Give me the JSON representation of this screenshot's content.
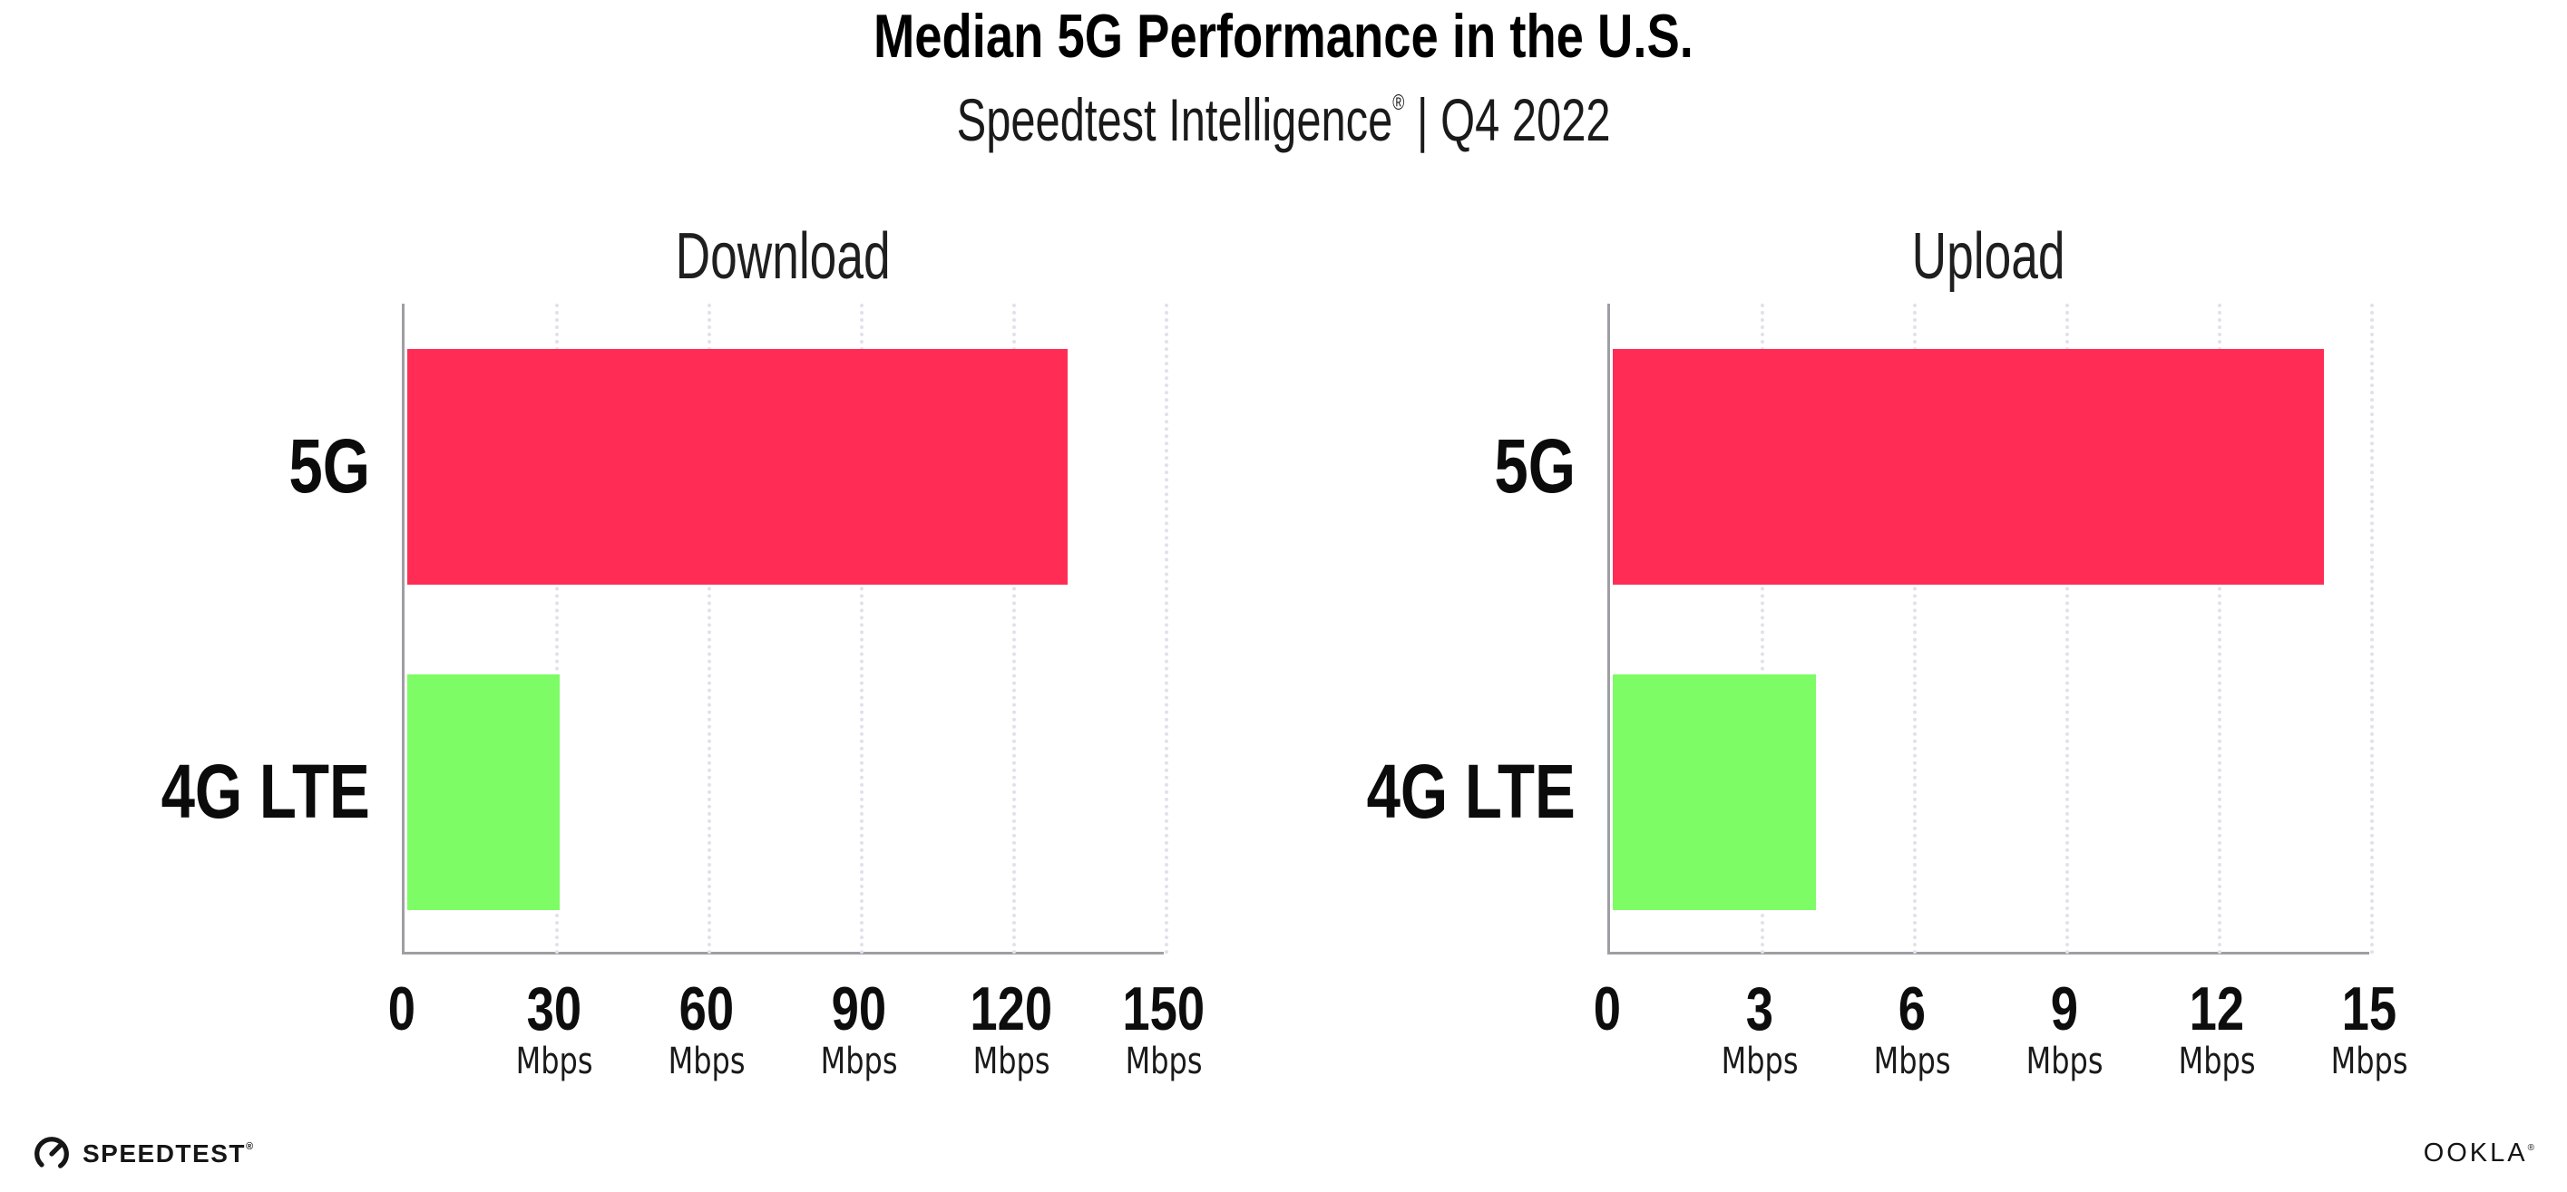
{
  "header": {
    "title": "Median 5G Performance in the U.S.",
    "subtitle_brand": "Speedtest Intelligence",
    "subtitle_reg": "®",
    "subtitle_rest": " | Q4 2022"
  },
  "colors": {
    "bar_5g": "#FF2D55",
    "bar_4g_lte": "#7DFC66",
    "gridline": "#E1E1EB",
    "axis": "#9E9EA3",
    "text": "#111111"
  },
  "chart_data": [
    {
      "type": "bar",
      "orientation": "horizontal",
      "title": "Download",
      "categories": [
        "5G",
        "4G LTE"
      ],
      "values": [
        130,
        30
      ],
      "unit": "Mbps",
      "xlim": [
        0,
        150
      ],
      "xticks": [
        0,
        30,
        60,
        90,
        120,
        150
      ],
      "bar_colors": [
        "#FF2D55",
        "#7DFC66"
      ],
      "grid": "dotted vertical gridlines at each tick",
      "legend": "none"
    },
    {
      "type": "bar",
      "orientation": "horizontal",
      "title": "Upload",
      "categories": [
        "5G",
        "4G LTE"
      ],
      "values": [
        14,
        4
      ],
      "unit": "Mbps",
      "xlim": [
        0,
        15
      ],
      "xticks": [
        0,
        3,
        6,
        9,
        12,
        15
      ],
      "bar_colors": [
        "#FF2D55",
        "#7DFC66"
      ],
      "grid": "dotted vertical gridlines at each tick",
      "legend": "none"
    }
  ],
  "footer": {
    "speedtest_label": "SPEEDTEST",
    "speedtest_mark": "®",
    "ookla_label": "OOKLA",
    "ookla_mark": "®"
  }
}
